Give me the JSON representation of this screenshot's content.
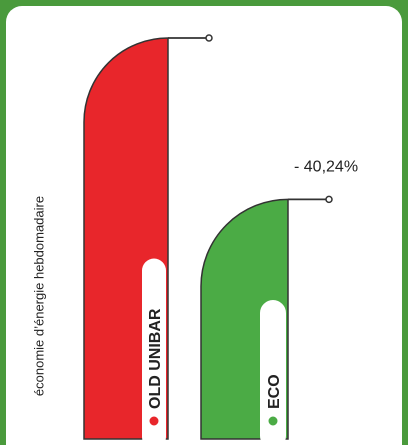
{
  "chart_data": {
    "type": "bar",
    "ylabel": "économie d’énergie hebdomadaire",
    "categories": [
      "OLD UNIBAR",
      "ECO"
    ],
    "values": [
      100,
      59.76
    ],
    "annotations": [
      "- 40,24%"
    ],
    "colors": {
      "old": "#e8262b",
      "eco": "#4bab45",
      "outline": "#333333",
      "background": "#4a9a3c"
    }
  }
}
